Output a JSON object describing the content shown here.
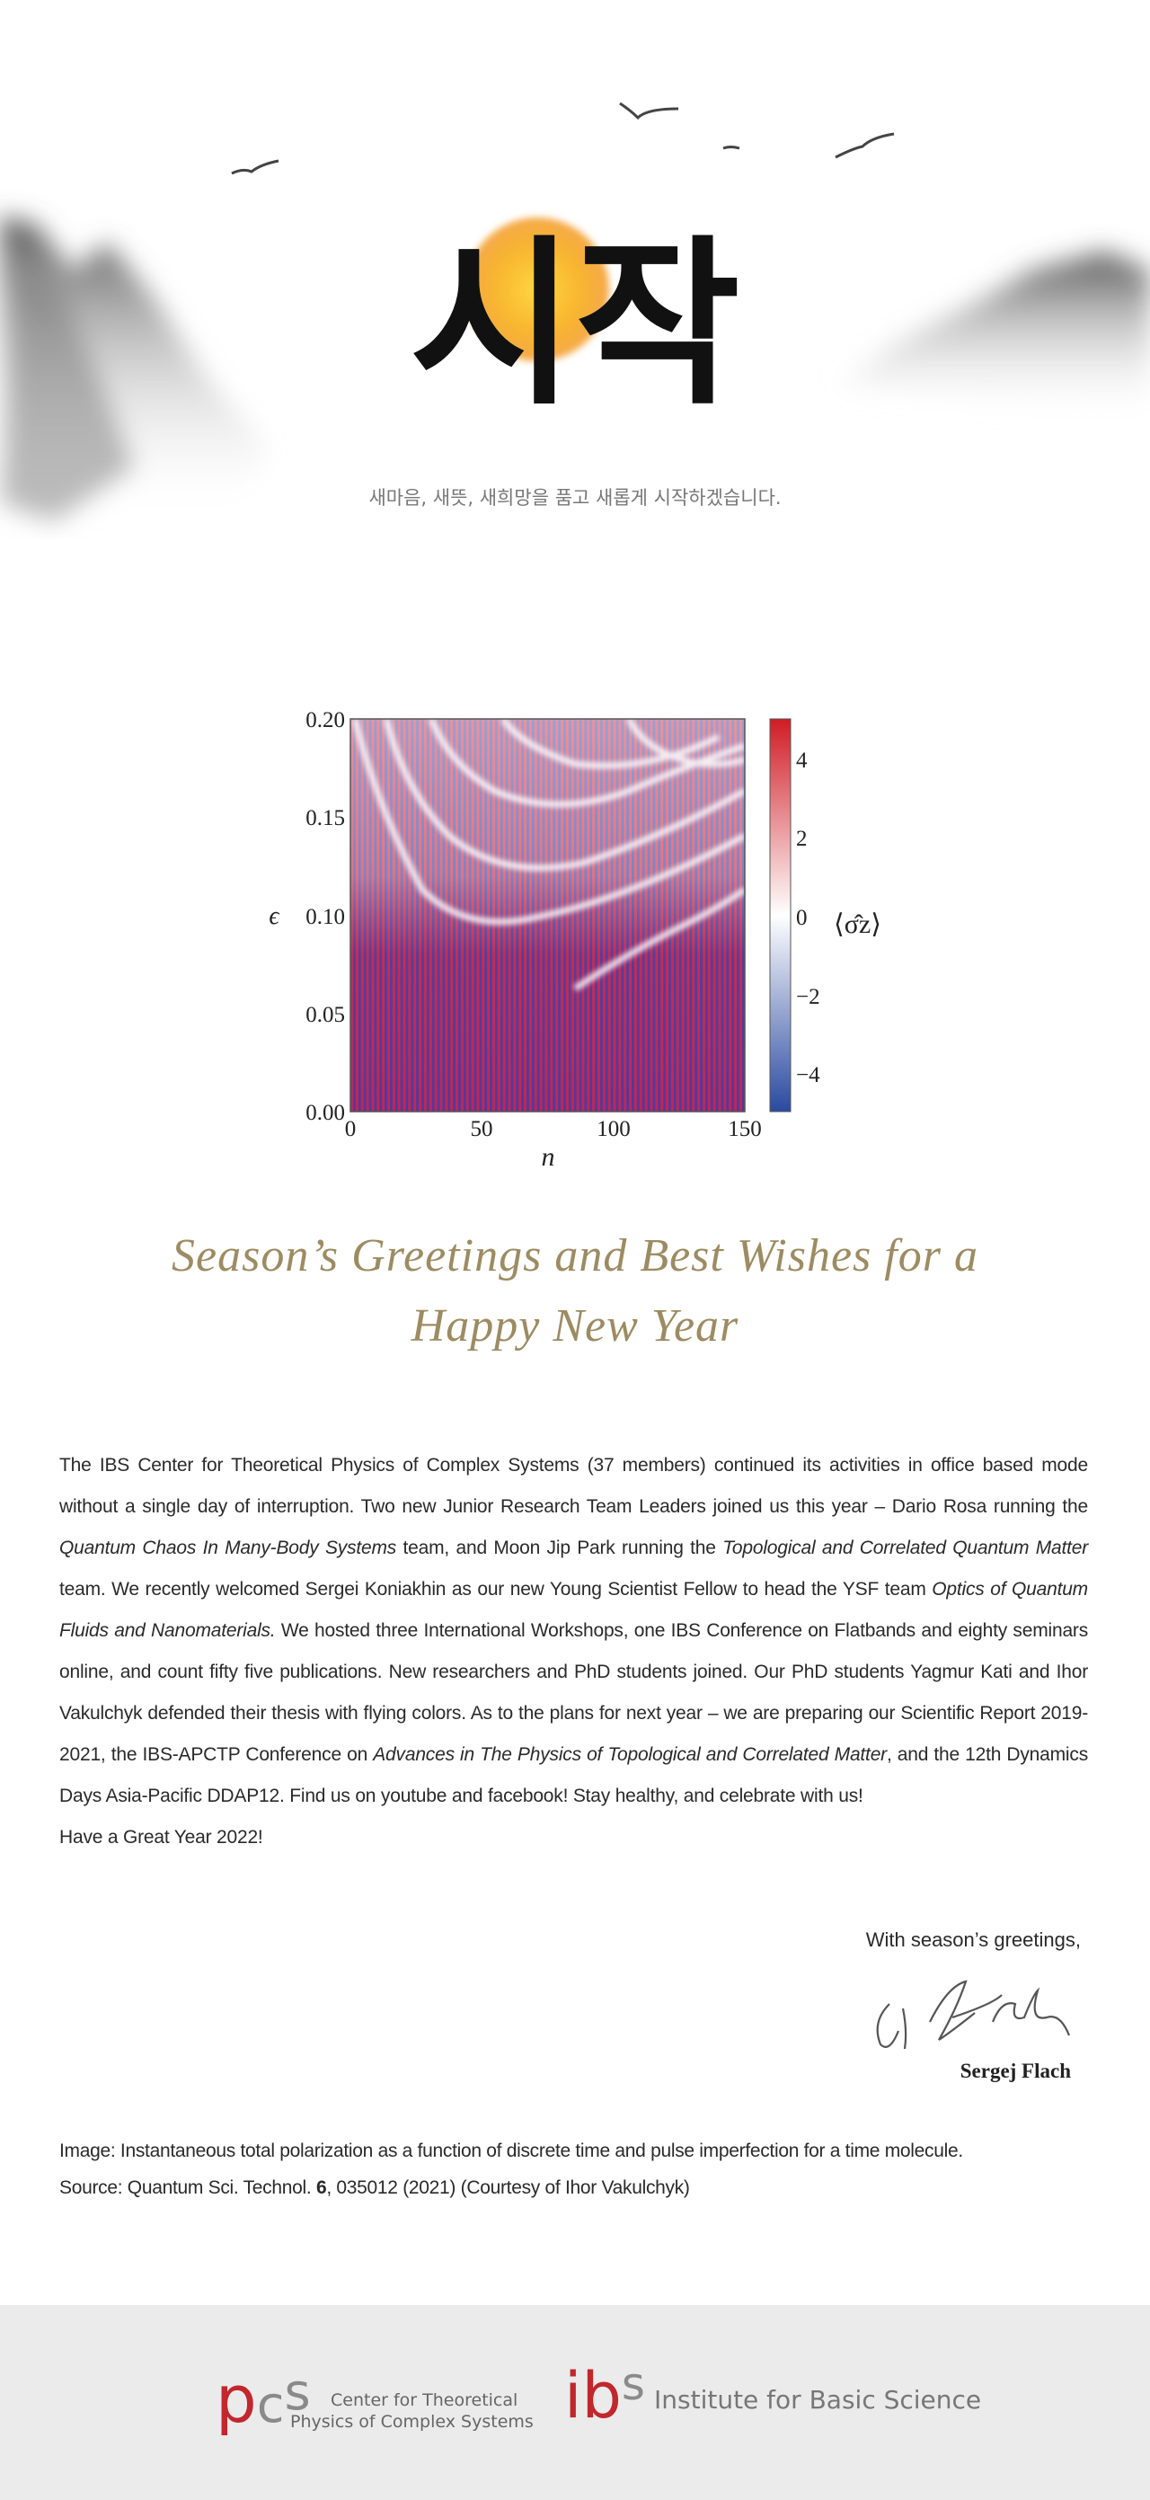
{
  "header": {
    "calligraphy": "시작",
    "subtitle": "새마음, 새뜻, 새희망을 품고 새롭게 시작하겠습니다."
  },
  "figure": {
    "y_label": "ϵ",
    "x_label": "n",
    "colorbar_label": "⟨σ̂z⟩",
    "yticks": [
      "0.20",
      "0.15",
      "0.10",
      "0.05",
      "0.00"
    ],
    "xticks": [
      "0",
      "50",
      "100",
      "150"
    ],
    "colorbar_ticks": [
      "4",
      "2",
      "0",
      "−2",
      "−4"
    ]
  },
  "greeting": [
    "Season’s Greetings and Best Wishes for a",
    "Happy New Year"
  ],
  "body": {
    "paragraph": [
      {
        "text": "The IBS Center for Theoretical Physics of Complex Systems (37 members) continued its activities in office based mode without a single day of interruption. Two new Junior Research Team Leaders joined us this year – Dario Rosa running the "
      },
      {
        "text": "Quantum Chaos In Many-Body Systems",
        "italic": true
      },
      {
        "text": " team, and Moon Jip Park running the "
      },
      {
        "text": "Topological and Correlated Quantum Matter",
        "italic": true
      },
      {
        "text": " team. We recently welcomed Sergei Koniakhin as our new Young Scientist Fellow to head the YSF team "
      },
      {
        "text": "Optics of Quantum Fluids and Nanomaterials.",
        "italic": true
      },
      {
        "text": " We hosted three International Workshops, one IBS Conference on Flatbands and eighty seminars online, and count fifty five publications. New researchers and PhD students joined. Our PhD students Yagmur Kati and Ihor Vakulchyk defended their thesis with flying colors. As to the plans for next year – we are preparing our Scientific Report 2019-2021, the IBS-APCTP Conference on "
      },
      {
        "text": "Advances in The Physics of Topological and Correlated Matter",
        "italic": true
      },
      {
        "text": ", and the 12th Dynamics Days Asia-Pacific DDAP12. Find us on youtube and facebook! Stay healthy, and celebrate with us!"
      }
    ],
    "closing": "Have a Great Year 2022!"
  },
  "signoff": {
    "greeting": "With season’s greetings,",
    "name": "Sergej Flach"
  },
  "caption": {
    "line1": "Image:  Instantaneous total polarization as a function of discrete time and pulse imperfection for a time molecule.",
    "source_prefix": "Source: Quantum Sci. Technol. ",
    "volume": "6",
    "source_suffix": ", 035012 (2021) (Courtesy of Ihor Vakulchyk)"
  },
  "footer": {
    "pcs": {
      "mark": [
        "p",
        "c",
        "s"
      ],
      "line1": "Center for Theoretical",
      "line2": "Physics of Complex Systems"
    },
    "ibs": {
      "mark": [
        "i",
        "b",
        "s"
      ],
      "name": "Institute for Basic Science"
    }
  }
}
